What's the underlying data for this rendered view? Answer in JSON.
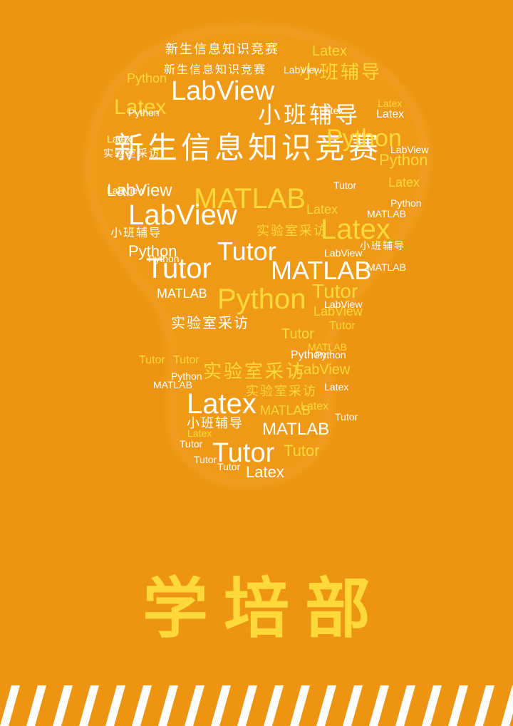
{
  "title": "学培部",
  "colors": {
    "background": "#ED9512",
    "bulb": "#EE9A16",
    "word_white": "#FFFFFF",
    "word_yellow": "#FFD93A",
    "title": "#FFD93A",
    "stripe": "#FFFFFF"
  },
  "words": [
    "新生信息知识竞赛",
    "LabView",
    "小班辅导",
    "Python",
    "MATLAB",
    "Latex",
    "Tutor",
    "实验室采访",
    "新生信息知识竞赛",
    "LabView",
    "MATLAB",
    "LabView",
    "Python",
    "Latex",
    "Tutor",
    "Tutor",
    "MATLAB",
    "Python",
    "Tutor",
    "实验室采访",
    "实验室采访",
    "Latex",
    "MATLAB",
    "小班辅导",
    "Tutor",
    "Latex",
    "Tutor",
    "Latex",
    "LabView",
    "Python",
    "小班辅导",
    "Latex",
    "Python",
    "LabView",
    "新生信息知识竞赛",
    "MATLAB",
    "Latex",
    "Tutor",
    "Python",
    "LabView",
    "小班辅导",
    "实验室采访",
    "LabView",
    "Latex",
    "Python",
    "MATLAB",
    "Tutor",
    "Latex",
    "Tutor",
    "LabView",
    "Python",
    "Latex",
    "MATLAB",
    "小班辅导",
    "Tutor",
    "Python",
    "Latex",
    "LabView",
    "MATLAB",
    "Tutor",
    "Latex",
    "Python",
    "实验室采访",
    "Tutor",
    "LabView",
    "Latex",
    "MATLAB",
    "Tutor",
    "Python",
    "Latex",
    "Tutor"
  ]
}
